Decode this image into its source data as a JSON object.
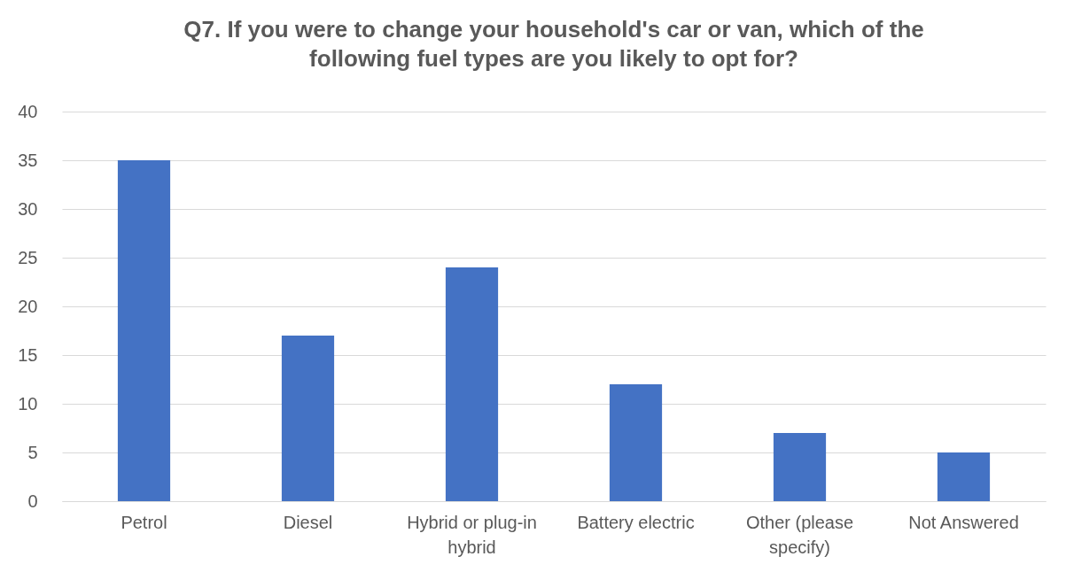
{
  "chart_data": {
    "type": "bar",
    "title": "Q7. If you were to change your household's car or van, which of the following fuel types are you likely to opt for?",
    "categories": [
      "Petrol",
      "Diesel",
      "Hybrid or plug-in hybrid",
      "Battery electric",
      "Other (please specify)",
      "Not Answered"
    ],
    "values": [
      35,
      17,
      24,
      12,
      7,
      5
    ],
    "color": "#4472c4",
    "ylim": [
      0,
      40
    ],
    "yticks": [
      0,
      5,
      10,
      15,
      20,
      25,
      30,
      35,
      40
    ],
    "grid": "y"
  }
}
